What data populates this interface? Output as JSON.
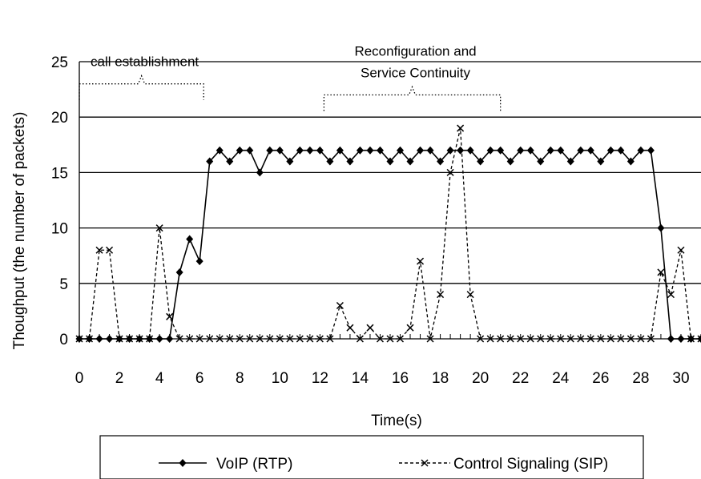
{
  "chart_data": {
    "type": "line",
    "xlabel": "Time(s)",
    "ylabel": "Thoughput (the number of packets)",
    "xlim": [
      0,
      31
    ],
    "ylim": [
      0,
      25
    ],
    "x_ticks": [
      "0",
      "2",
      "4",
      "6",
      "8",
      "10",
      "12",
      "14",
      "16",
      "18",
      "20",
      "22",
      "24",
      "26",
      "28",
      "30"
    ],
    "y_ticks": [
      "0",
      "5",
      "10",
      "15",
      "20",
      "25"
    ],
    "grid": "horizontal",
    "legend_position": "bottom",
    "annotations": [
      {
        "text": "call establishment",
        "lines": [
          "call establishment"
        ],
        "x_start": 0,
        "x_end": 6.2,
        "y": 23
      },
      {
        "text": "Reconfiguration and Service Continuity",
        "lines": [
          "Reconfiguration and",
          "Service Continuity"
        ],
        "x_start": 12.2,
        "x_end": 21,
        "y": 22
      }
    ],
    "series": [
      {
        "name": "VoIP (RTP)",
        "style": "solid",
        "marker": "diamond",
        "color": "#000000",
        "x": [
          0,
          0.5,
          1,
          1.5,
          2,
          2.5,
          3,
          3.5,
          4,
          4.5,
          5,
          5.5,
          6,
          6.5,
          7,
          7.5,
          8,
          8.5,
          9,
          9.5,
          10,
          10.5,
          11,
          11.5,
          12,
          12.5,
          13,
          13.5,
          14,
          14.5,
          15,
          15.5,
          16,
          16.5,
          17,
          17.5,
          18,
          18.5,
          19,
          19.5,
          20,
          20.5,
          21,
          21.5,
          22,
          22.5,
          23,
          23.5,
          24,
          24.5,
          25,
          25.5,
          26,
          26.5,
          27,
          27.5,
          28,
          28.5,
          29,
          29.5,
          30,
          30.5,
          31
        ],
        "y": [
          0,
          0,
          0,
          0,
          0,
          0,
          0,
          0,
          0,
          0,
          6,
          9,
          7,
          16,
          17,
          16,
          17,
          17,
          15,
          17,
          17,
          16,
          17,
          17,
          17,
          16,
          17,
          16,
          17,
          17,
          17,
          16,
          17,
          16,
          17,
          17,
          16,
          17,
          17,
          17,
          16,
          17,
          17,
          16,
          17,
          17,
          16,
          17,
          17,
          16,
          17,
          17,
          16,
          17,
          17,
          16,
          17,
          17,
          10,
          0,
          0,
          0,
          0
        ]
      },
      {
        "name": "Control Signaling  (SIP)",
        "style": "dashed",
        "marker": "x",
        "color": "#000000",
        "x": [
          0,
          0.5,
          1,
          1.5,
          2,
          2.5,
          3,
          3.5,
          4,
          4.5,
          5,
          5.5,
          6,
          6.5,
          7,
          7.5,
          8,
          8.5,
          9,
          9.5,
          10,
          10.5,
          11,
          11.5,
          12,
          12.5,
          13,
          13.5,
          14,
          14.5,
          15,
          15.5,
          16,
          16.5,
          17,
          17.5,
          18,
          18.5,
          19,
          19.5,
          20,
          20.5,
          21,
          21.5,
          22,
          22.5,
          23,
          23.5,
          24,
          24.5,
          25,
          25.5,
          26,
          26.5,
          27,
          27.5,
          28,
          28.5,
          29,
          29.5,
          30,
          30.5,
          31
        ],
        "y": [
          0,
          0,
          8,
          8,
          0,
          0,
          0,
          0,
          10,
          2,
          0,
          0,
          0,
          0,
          0,
          0,
          0,
          0,
          0,
          0,
          0,
          0,
          0,
          0,
          0,
          0,
          3,
          1,
          0,
          1,
          0,
          0,
          0,
          1,
          7,
          0,
          4,
          15,
          19,
          4,
          0,
          0,
          0,
          0,
          0,
          0,
          0,
          0,
          0,
          0,
          0,
          0,
          0,
          0,
          0,
          0,
          0,
          0,
          6,
          4,
          8,
          0,
          0
        ]
      }
    ]
  }
}
